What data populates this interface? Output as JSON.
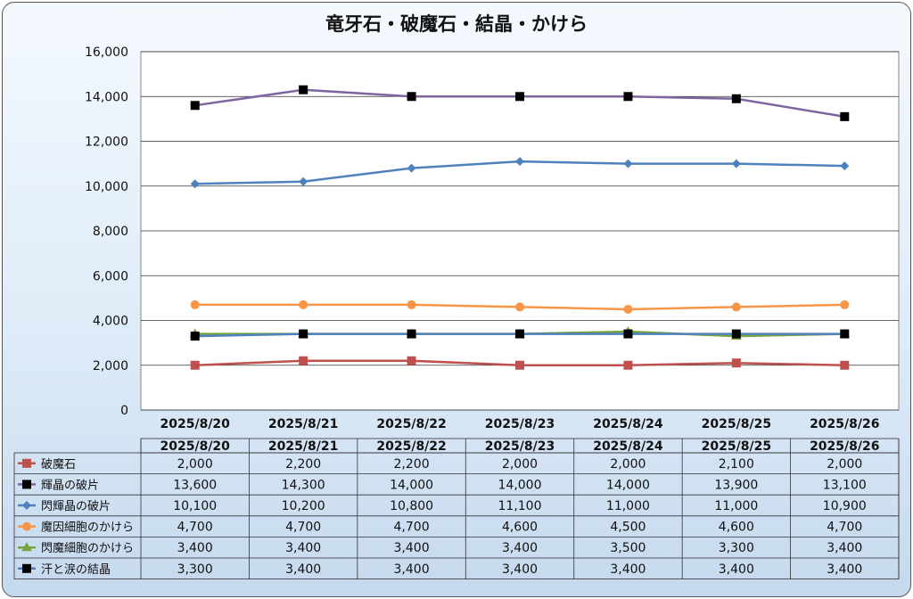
{
  "chart_data": {
    "type": "line",
    "title": "竜牙石・破魔石・結晶・かけら",
    "categories": [
      "2025/8/20",
      "2025/8/21",
      "2025/8/22",
      "2025/8/23",
      "2025/8/24",
      "2025/8/25",
      "2025/8/26"
    ],
    "ylim": [
      0,
      16000
    ],
    "yticks": [
      0,
      2000,
      4000,
      6000,
      8000,
      10000,
      12000,
      14000,
      16000
    ],
    "ytick_labels": [
      "0",
      "2,000",
      "4,000",
      "6,000",
      "8,000",
      "10,000",
      "12,000",
      "14,000",
      "16,000"
    ],
    "grid": true,
    "legend": "data-table",
    "series": [
      {
        "name": "破魔石",
        "color": "#c0504d",
        "marker": "square",
        "values": [
          2000,
          2200,
          2200,
          2000,
          2000,
          2100,
          2000
        ],
        "labels": [
          "2,000",
          "2,200",
          "2,200",
          "2,000",
          "2,000",
          "2,100",
          "2,000"
        ]
      },
      {
        "name": "輝晶の破片",
        "color": "#8064a2",
        "marker": "square-black",
        "values": [
          13600,
          14300,
          14000,
          14000,
          14000,
          13900,
          13100
        ],
        "labels": [
          "13,600",
          "14,300",
          "14,000",
          "14,000",
          "14,000",
          "13,900",
          "13,100"
        ]
      },
      {
        "name": "閃輝晶の破片",
        "color": "#4f81bd",
        "marker": "diamond",
        "values": [
          10100,
          10200,
          10800,
          11100,
          11000,
          11000,
          10900
        ],
        "labels": [
          "10,100",
          "10,200",
          "10,800",
          "11,100",
          "11,000",
          "11,000",
          "10,900"
        ]
      },
      {
        "name": "魔因細胞のかけら",
        "color": "#f79646",
        "marker": "circle",
        "values": [
          4700,
          4700,
          4700,
          4600,
          4500,
          4600,
          4700
        ],
        "labels": [
          "4,700",
          "4,700",
          "4,700",
          "4,600",
          "4,500",
          "4,600",
          "4,700"
        ]
      },
      {
        "name": "閃魔細胞のかけら",
        "color": "#77a33c",
        "marker": "triangle",
        "values": [
          3400,
          3400,
          3400,
          3400,
          3500,
          3300,
          3400
        ],
        "labels": [
          "3,400",
          "3,400",
          "3,400",
          "3,400",
          "3,500",
          "3,300",
          "3,400"
        ]
      },
      {
        "name": "汗と涙の結晶",
        "color": "#4f81bd",
        "marker": "square-black",
        "values": [
          3300,
          3400,
          3400,
          3400,
          3400,
          3400,
          3400
        ],
        "labels": [
          "3,300",
          "3,400",
          "3,400",
          "3,400",
          "3,400",
          "3,400",
          "3,400"
        ]
      }
    ]
  }
}
